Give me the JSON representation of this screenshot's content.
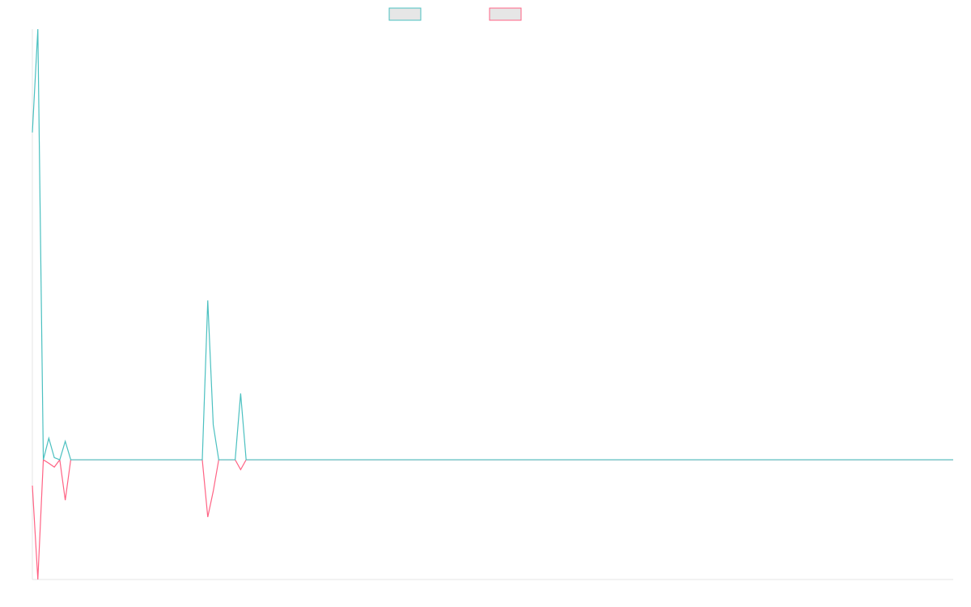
{
  "chart_data": {
    "type": "line",
    "ylim": [
      -27.8,
      100
    ],
    "series": [
      {
        "color": "#4bc0c0",
        "values": [
          76,
          100,
          0,
          5,
          0.5,
          0,
          4.3,
          0,
          0,
          0,
          0,
          0,
          0,
          0,
          0,
          0,
          0,
          0,
          0,
          0,
          0,
          0,
          0,
          0,
          0,
          0,
          0,
          0,
          0,
          0,
          0,
          0,
          37,
          8.1,
          0,
          0,
          0,
          0,
          15.4,
          0,
          0,
          0,
          0,
          0,
          0,
          0,
          0,
          0,
          0,
          0,
          0,
          0,
          0,
          0,
          0,
          0,
          0,
          0,
          0,
          0,
          0,
          0,
          0,
          0,
          0,
          0,
          0,
          0,
          0,
          0,
          0,
          0,
          0,
          0,
          0,
          0,
          0,
          0,
          0,
          0,
          0,
          0,
          0,
          0,
          0,
          0,
          0,
          0,
          0,
          0,
          0,
          0,
          0,
          0,
          0,
          0,
          0,
          0,
          0,
          0,
          0,
          0,
          0,
          0,
          0,
          0,
          0,
          0,
          0,
          0,
          0,
          0,
          0,
          0,
          0,
          0,
          0,
          0,
          0,
          0,
          0,
          0,
          0,
          0,
          0,
          0,
          0,
          0,
          0,
          0,
          0,
          0,
          0,
          0,
          0,
          0,
          0,
          0,
          0,
          0,
          0,
          0,
          0,
          0,
          0,
          0,
          0,
          0,
          0,
          0,
          0,
          0,
          0,
          0,
          0,
          0,
          0,
          0,
          0,
          0,
          0,
          0,
          0,
          0,
          0,
          0,
          0,
          0,
          0
        ]
      },
      {
        "color": "#ff6384",
        "values": [
          -6,
          -27.8,
          0,
          -0.8,
          -1.7,
          0,
          -9.4,
          0,
          0,
          0,
          0,
          0,
          0,
          0,
          0,
          0,
          0,
          0,
          0,
          0,
          0,
          0,
          0,
          0,
          0,
          0,
          0,
          0,
          0,
          0,
          0,
          0,
          -13.3,
          -7.3,
          0,
          0,
          0,
          0,
          -2.3,
          0,
          0,
          0,
          0,
          0,
          0,
          0,
          0,
          0,
          0,
          0,
          0,
          0,
          0,
          0,
          0,
          0,
          0,
          0,
          0,
          0,
          0,
          0,
          0,
          0,
          0,
          0,
          0,
          0,
          0,
          0,
          0,
          0,
          0,
          0,
          0,
          0,
          0,
          0,
          0,
          0,
          0,
          0,
          0,
          0,
          0,
          0,
          0,
          0,
          0,
          0,
          0,
          0,
          0,
          0,
          0,
          0,
          0,
          0,
          0,
          0,
          0,
          0,
          0,
          0,
          0,
          0,
          0,
          0,
          0,
          0,
          0,
          0,
          0,
          0,
          0,
          0,
          0,
          0,
          0,
          0,
          0,
          0,
          0,
          0,
          0,
          0,
          0,
          0,
          0,
          0,
          0,
          0,
          0,
          0,
          0,
          0,
          0,
          0,
          0,
          0,
          0,
          0,
          0,
          0,
          0,
          0,
          0,
          0,
          0,
          0,
          0,
          0,
          0,
          0,
          0,
          0,
          0,
          0,
          0,
          0,
          0,
          0,
          0,
          0,
          0,
          0,
          0,
          0,
          0
        ]
      }
    ]
  }
}
